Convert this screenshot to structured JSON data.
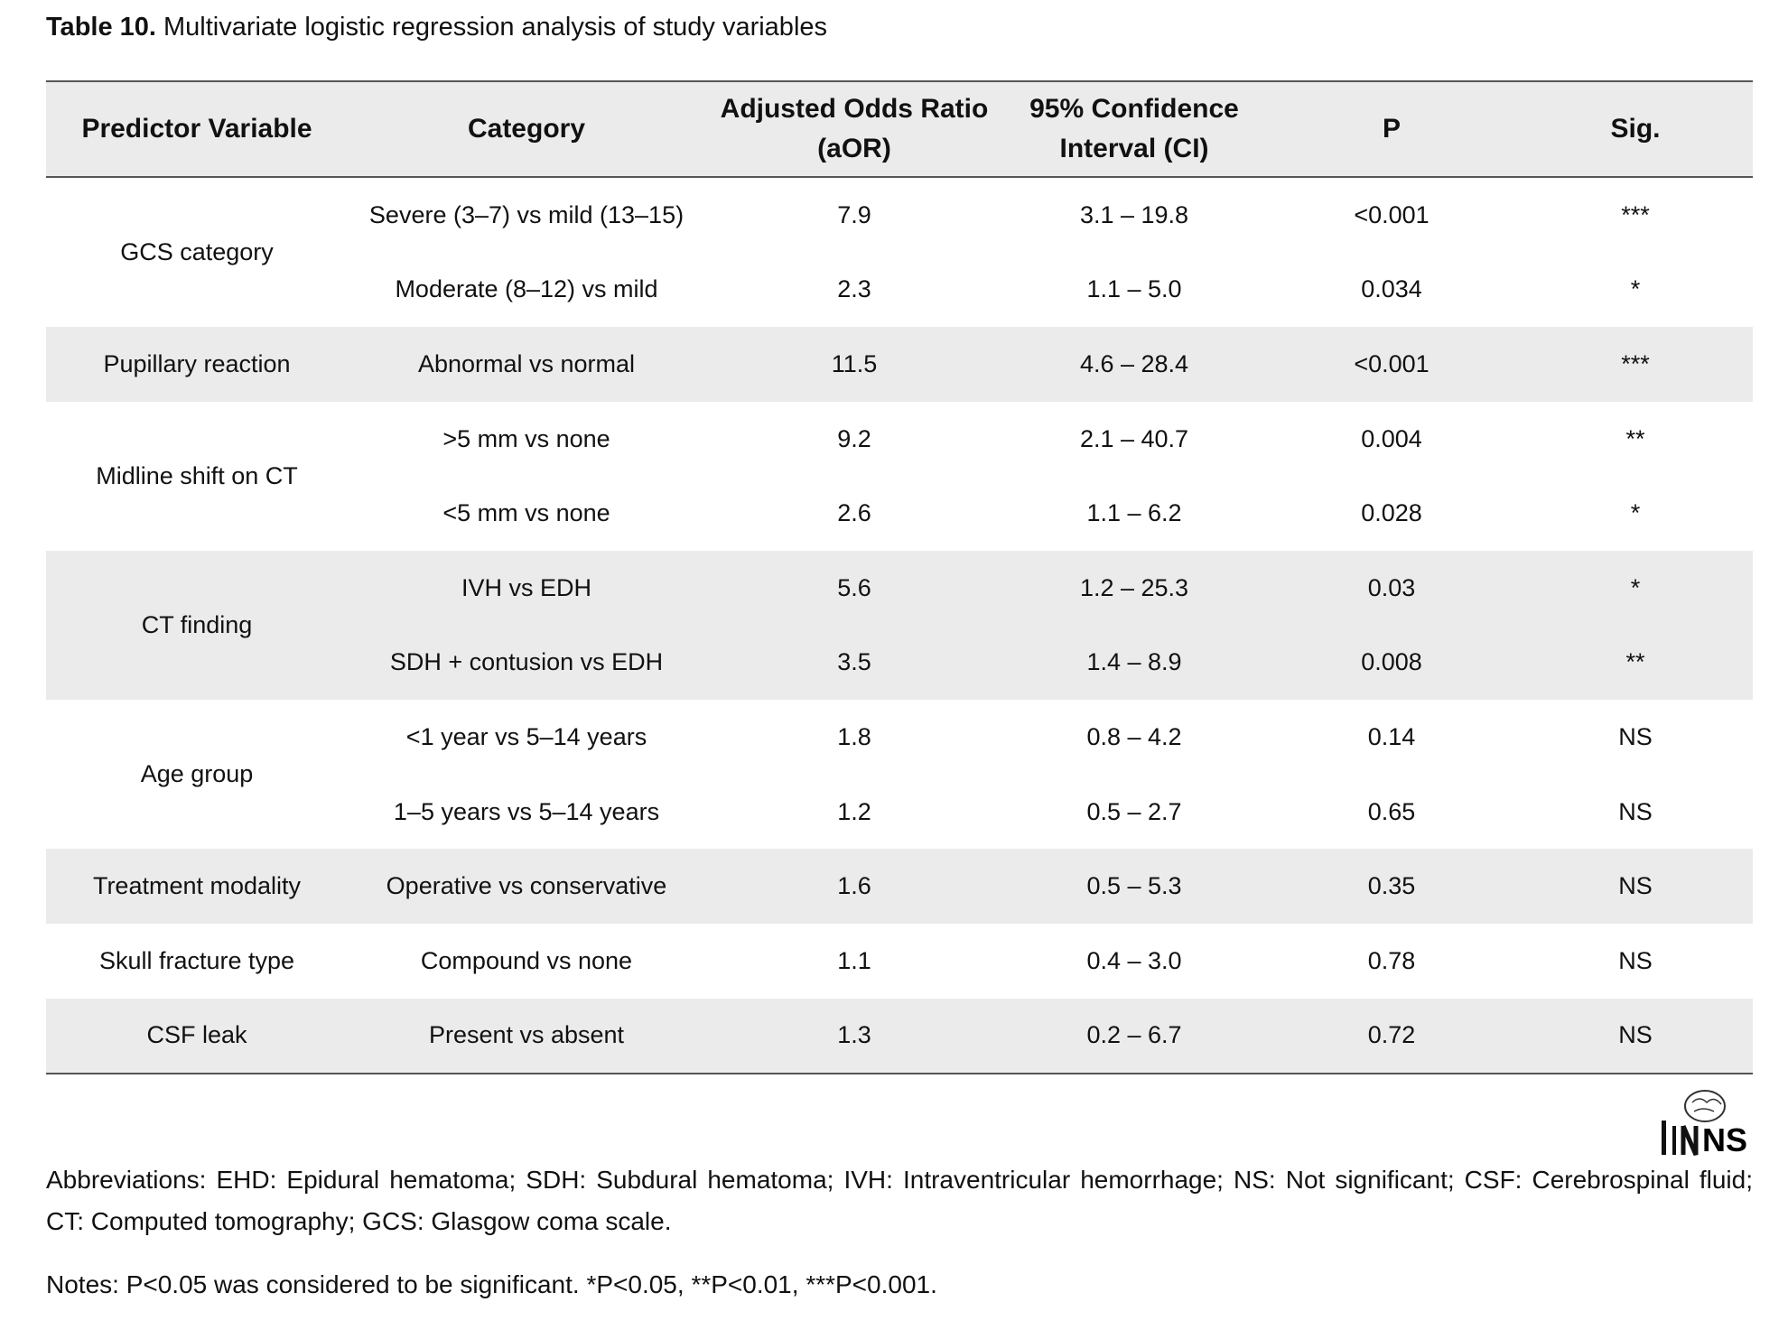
{
  "title": {
    "label": "Table 10.",
    "text": " Multivariate logistic regression analysis of study variables"
  },
  "table": {
    "header": [
      "Predictor Variable",
      "Category",
      "Adjusted Odds Ratio (aOR)",
      "95% Confidence Interval (CI)",
      "P",
      "Sig."
    ],
    "groups": [
      {
        "label": "GCS category",
        "rows": [
          [
            "Severe (3–7) vs mild (13–15)",
            "7.9",
            "3.1 – 19.8",
            "<0.001",
            "***"
          ],
          [
            "Moderate (8–12) vs mild",
            "2.3",
            "1.1 – 5.0",
            "0.034",
            "*"
          ]
        ]
      },
      {
        "label": "Pupillary reaction",
        "rows": [
          [
            "Abnormal vs normal",
            "11.5",
            "4.6 – 28.4",
            "<0.001",
            "***"
          ]
        ]
      },
      {
        "label": "Midline shift on CT",
        "rows": [
          [
            ">5 mm vs none",
            "9.2",
            "2.1 – 40.7",
            "0.004",
            "**"
          ],
          [
            "<5 mm vs none",
            "2.6",
            "1.1 – 6.2",
            "0.028",
            "*"
          ]
        ]
      },
      {
        "label": "CT finding",
        "rows": [
          [
            "IVH vs EDH",
            "5.6",
            "1.2 – 25.3",
            "0.03",
            "*"
          ],
          [
            "SDH + contusion vs EDH",
            "3.5",
            "1.4 – 8.9",
            "0.008",
            "**"
          ]
        ]
      },
      {
        "label": "Age group",
        "rows": [
          [
            "<1 year vs 5–14 years",
            "1.8",
            "0.8 – 4.2",
            "0.14",
            "NS"
          ],
          [
            "1–5 years vs 5–14 years",
            "1.2",
            "0.5 – 2.7",
            "0.65",
            "NS"
          ]
        ]
      },
      {
        "label": "Treatment modality",
        "rows": [
          [
            "Operative vs conservative",
            "1.6",
            "0.5 – 5.3",
            "0.35",
            "NS"
          ]
        ]
      },
      {
        "label": "Skull fracture type",
        "rows": [
          [
            "Compound vs none",
            "1.1",
            "0.4 – 3.0",
            "0.78",
            "NS"
          ]
        ]
      },
      {
        "label": "CSF leak",
        "rows": [
          [
            "Present vs absent",
            "1.3",
            "0.2 – 6.7",
            "0.72",
            "NS"
          ]
        ]
      }
    ]
  },
  "logo": "NS",
  "footnotes": {
    "abbreviations": "Abbreviations: EHD: Epidural hematoma; SDH: Subdural hematoma; IVH: Intraventricular hemorrhage; NS: Not significant; CSF: Cerebrospinal fluid; CT: Computed tomography; GCS: Glasgow coma scale.",
    "notes": "Notes: P<0.05 was considered to be significant. *P<0.05, **P<0.01, ***P<0.001."
  }
}
